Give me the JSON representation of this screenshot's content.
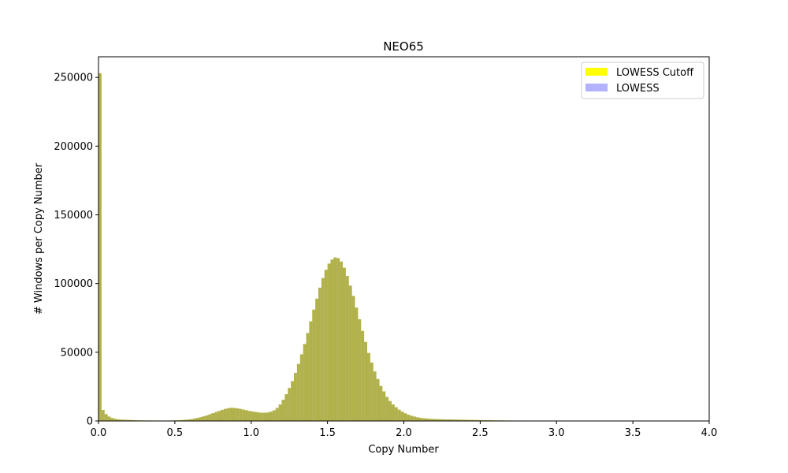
{
  "chart_data": {
    "type": "bar",
    "title": "NEO65",
    "xlabel": "Copy Number",
    "ylabel": "# Windows per Copy Number",
    "xlim": [
      0,
      4.0
    ],
    "ylim": [
      0,
      265000
    ],
    "xticks": [
      "0.0",
      "0.5",
      "1.0",
      "1.5",
      "2.0",
      "2.5",
      "3.0",
      "3.5",
      "4.0"
    ],
    "yticks": [
      "0",
      "50000",
      "100000",
      "150000",
      "200000",
      "250000"
    ],
    "legend_position": "top-right",
    "grid": false,
    "bin_width": 0.02,
    "series": [
      {
        "name": "LOWESS Cutoff",
        "color": "#ffff00",
        "alpha": 1.0,
        "values": [
          253000,
          8000,
          5000,
          3200,
          2200,
          1600,
          1200,
          1000,
          900,
          800,
          700,
          600,
          500,
          450,
          400,
          380,
          360,
          340,
          330,
          320,
          310,
          300,
          310,
          330,
          380,
          450,
          550,
          700,
          900,
          1100,
          1400,
          1800,
          2300,
          2800,
          3400,
          4100,
          4900,
          5700,
          6500,
          7300,
          8100,
          8800,
          9300,
          9600,
          9500,
          9200,
          8800,
          8300,
          7800,
          7300,
          6900,
          6500,
          6200,
          6000,
          6000,
          6200,
          6800,
          7800,
          9500,
          12000,
          15500,
          19500,
          24000,
          29000,
          35000,
          41500,
          48500,
          56000,
          64000,
          72500,
          81000,
          89000,
          97000,
          104000,
          110000,
          114500,
          117500,
          119000,
          118500,
          116000,
          111500,
          105500,
          98500,
          91000,
          82500,
          74000,
          65500,
          57500,
          49500,
          42500,
          36000,
          30500,
          25500,
          21500,
          17500,
          14500,
          12000,
          10000,
          8200,
          6800,
          5600,
          4600,
          3800,
          3200,
          2700,
          2300,
          2000,
          1800,
          1600,
          1500,
          1400,
          1300,
          1250,
          1200,
          1150,
          1100,
          1050,
          1000,
          950,
          900,
          850,
          800,
          750,
          700,
          650,
          600,
          560,
          520,
          480,
          450,
          420,
          400,
          380,
          360,
          340,
          320,
          310,
          300,
          290,
          280,
          270,
          260,
          250,
          240,
          230,
          220,
          210,
          200,
          195,
          190,
          185,
          180,
          175,
          170,
          165,
          160,
          155,
          150,
          145,
          140,
          135,
          130,
          125,
          120,
          115,
          110,
          105,
          100,
          95,
          90,
          85,
          80,
          75,
          70,
          65,
          60,
          55,
          50,
          45,
          40,
          35,
          30,
          25,
          20,
          15,
          10,
          8,
          6,
          4,
          2,
          1
        ]
      },
      {
        "name": "LOWESS",
        "color": "#0000ff",
        "alpha": 0.3,
        "values": [
          253000,
          8000,
          5000,
          3200,
          2200,
          1600,
          1200,
          1000,
          900,
          800,
          700,
          600,
          500,
          450,
          400,
          380,
          360,
          340,
          330,
          320,
          310,
          300,
          310,
          330,
          380,
          450,
          550,
          700,
          900,
          1100,
          1400,
          1800,
          2300,
          2800,
          3400,
          4100,
          4900,
          5700,
          6500,
          7300,
          8100,
          8800,
          9300,
          9600,
          9500,
          9200,
          8800,
          8300,
          7800,
          7300,
          6900,
          6500,
          6200,
          6000,
          6000,
          6200,
          6800,
          7800,
          9500,
          12000,
          15500,
          19500,
          24000,
          29000,
          35000,
          41500,
          48500,
          56000,
          64000,
          72500,
          81000,
          89000,
          97000,
          104000,
          110000,
          114500,
          117500,
          119000,
          118500,
          116000,
          111500,
          105500,
          98500,
          91000,
          82500,
          74000,
          65500,
          57500,
          49500,
          42500,
          36000,
          30500,
          25500,
          21500,
          17500,
          14500,
          12000,
          10000,
          8200,
          6800,
          5600,
          4600,
          3800,
          3200,
          2700,
          2300,
          2000,
          1800,
          1600,
          1500,
          1400,
          1300,
          1250,
          1200,
          1150,
          1100,
          1050,
          1000,
          950,
          900,
          850,
          800,
          750,
          700,
          650,
          600,
          560,
          520,
          480,
          450,
          420,
          400,
          380,
          360,
          340,
          320,
          310,
          300,
          290,
          280,
          270,
          260,
          250,
          240,
          230,
          220,
          210,
          200,
          195,
          190,
          185,
          180,
          175,
          170,
          165,
          160,
          155,
          150,
          145,
          140,
          135,
          130,
          125,
          120,
          115,
          110,
          105,
          100,
          95,
          90,
          85,
          80,
          75,
          70,
          65,
          60,
          55,
          50,
          45,
          40,
          35,
          30,
          25,
          20,
          15,
          10,
          8,
          6,
          4,
          2,
          1
        ]
      }
    ]
  }
}
